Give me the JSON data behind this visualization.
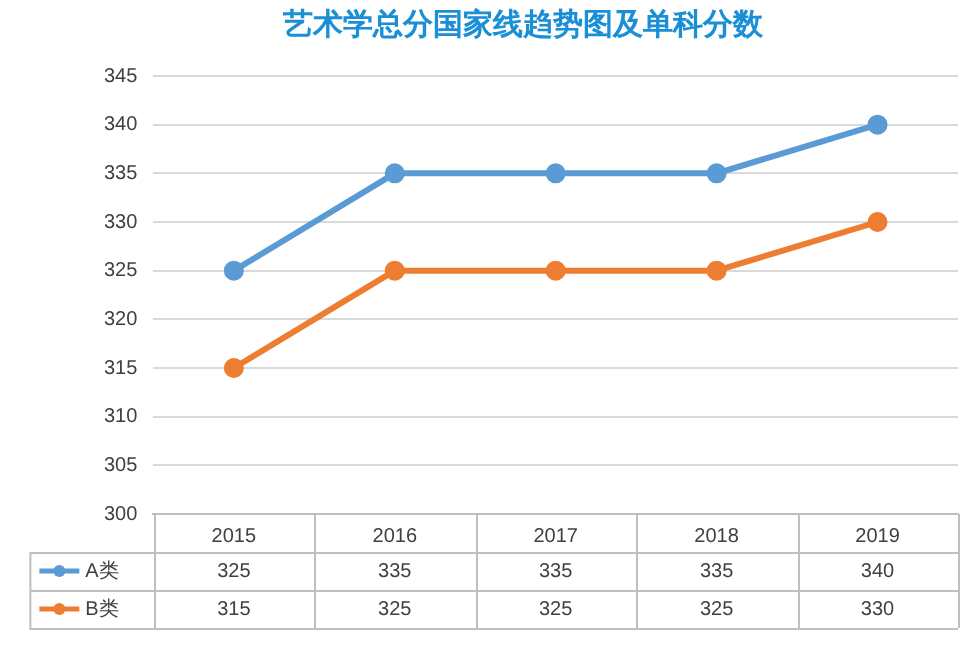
{
  "chart_data": {
    "type": "line",
    "title": "艺术学总分国家线趋势图及单科分数",
    "categories": [
      "2015",
      "2016",
      "2017",
      "2018",
      "2019"
    ],
    "series": [
      {
        "name": "A类",
        "color": "#5b9bd5",
        "values": [
          325,
          335,
          335,
          335,
          340
        ]
      },
      {
        "name": "B类",
        "color": "#ed7d31",
        "values": [
          315,
          325,
          325,
          325,
          330
        ]
      }
    ],
    "ylim": [
      300,
      345
    ],
    "yticks": [
      300,
      305,
      310,
      315,
      320,
      325,
      330,
      335,
      340,
      345
    ],
    "grid": "y",
    "legend": "bottom",
    "marker": "circle",
    "line_style": "solid",
    "data_labels": true
  }
}
